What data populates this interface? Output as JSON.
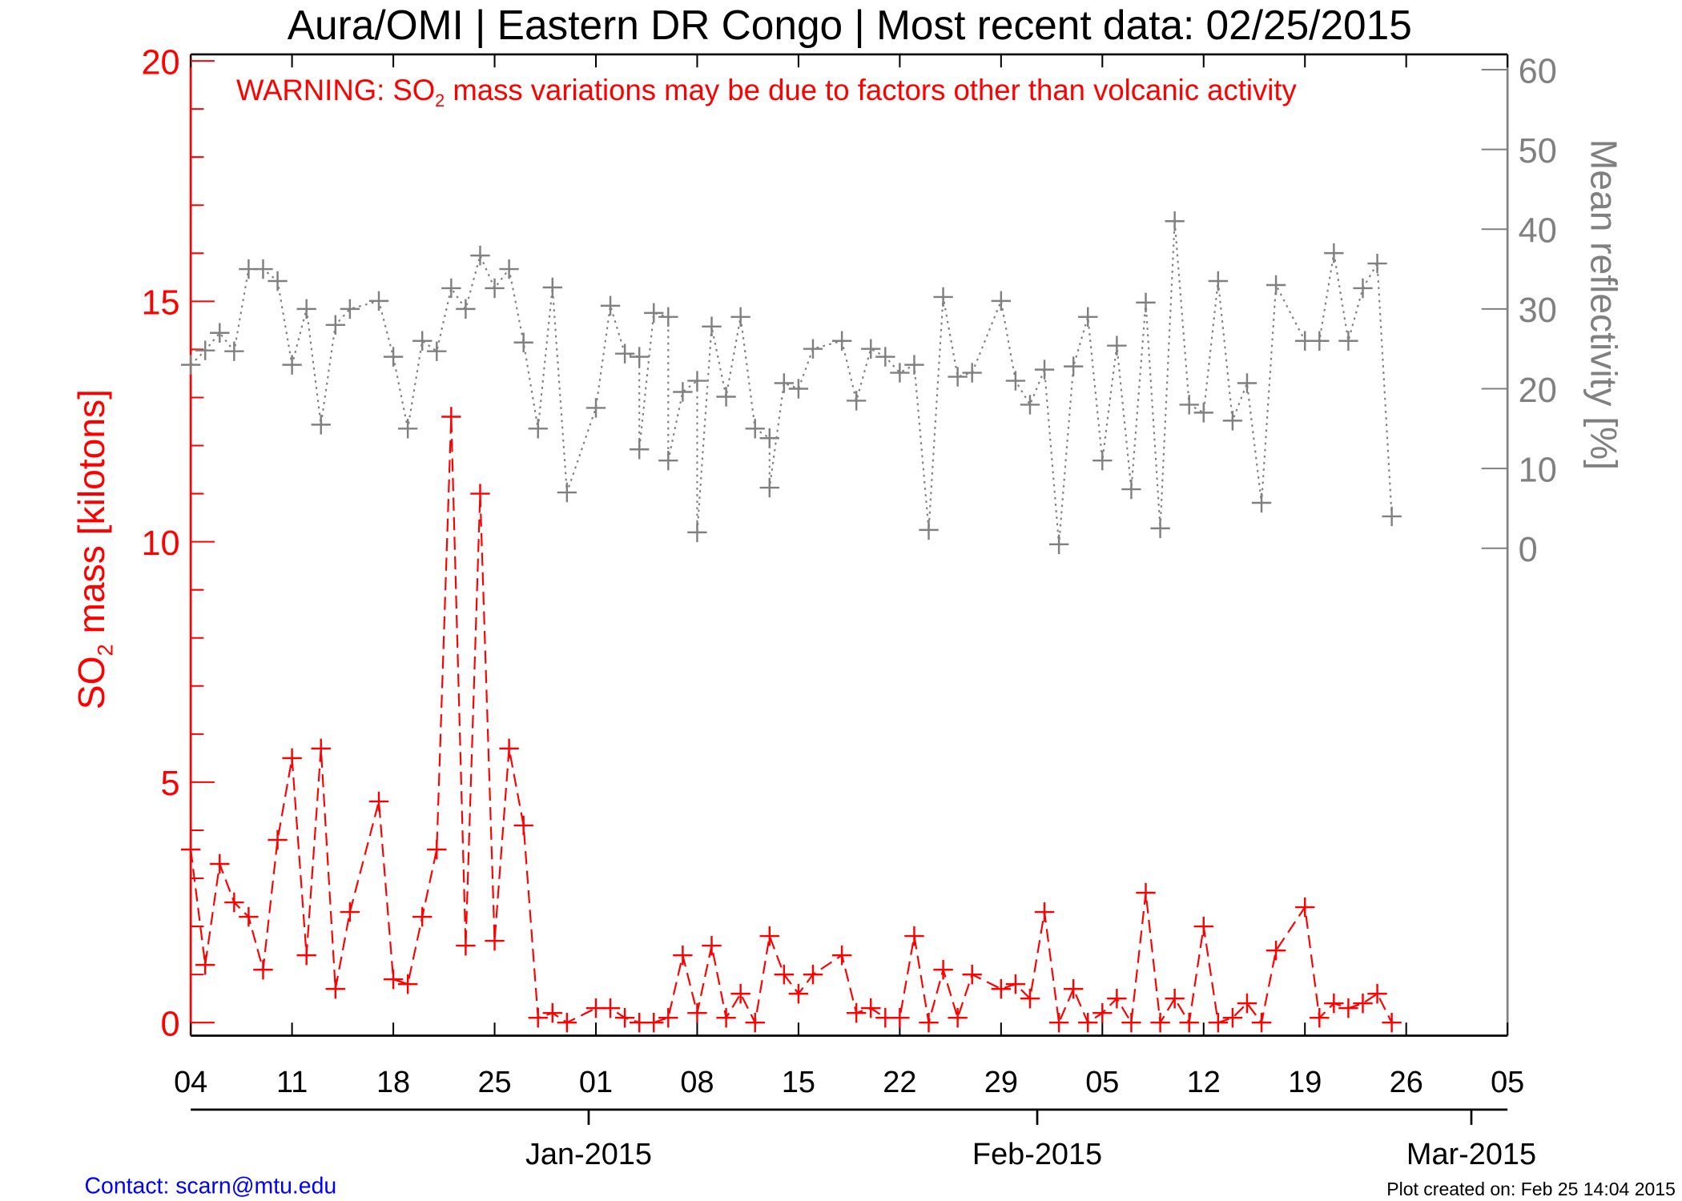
{
  "chart_data": {
    "type": "line",
    "title": "Aura/OMI | Eastern DR Congo | Most recent data: 02/25/2015",
    "warning": {
      "prefix": "WARNING: SO",
      "sub": "2",
      "suffix": " mass variations may be due to factors other than volcanic activity"
    },
    "x_origin_date": "2014-12-04",
    "x_unit": "days since 04 Dec 2014",
    "xlim": [
      0,
      91
    ],
    "x_ticks": [
      {
        "day": 0,
        "label": "04"
      },
      {
        "day": 7,
        "label": "11"
      },
      {
        "day": 14,
        "label": "18"
      },
      {
        "day": 21,
        "label": "25"
      },
      {
        "day": 28,
        "label": "01"
      },
      {
        "day": 35,
        "label": "08"
      },
      {
        "day": 42,
        "label": "15"
      },
      {
        "day": 49,
        "label": "22"
      },
      {
        "day": 56,
        "label": "29"
      },
      {
        "day": 63,
        "label": "05"
      },
      {
        "day": 70,
        "label": "12"
      },
      {
        "day": 77,
        "label": "19"
      },
      {
        "day": 84,
        "label": "26"
      },
      {
        "day": 91,
        "label": "05"
      }
    ],
    "month_ticks": [
      {
        "day": 27.5,
        "label": "Jan-2015"
      },
      {
        "day": 58.5,
        "label": "Feb-2015"
      },
      {
        "day": 88.5,
        "label": "Mar-2015"
      }
    ],
    "y_left": {
      "label_prefix": "SO",
      "label_sub": "2",
      "label_suffix": " mass [kilotons]",
      "ylim": [
        0,
        20
      ],
      "ticks": [
        "0",
        "5",
        "10",
        "15",
        "20"
      ],
      "color": "#ff0000"
    },
    "y_right": {
      "label": "Mean reflectivity [%]",
      "ylim": [
        0,
        60
      ],
      "ticks": [
        "0",
        "10",
        "20",
        "30",
        "40",
        "50",
        "60"
      ],
      "color": "#808080"
    },
    "series": [
      {
        "name": "SO2 mass",
        "axis": "left",
        "color": "#ff0000",
        "style": "dashed",
        "points": [
          [
            0,
            3.6
          ],
          [
            1,
            1.2
          ],
          [
            2,
            3.3
          ],
          [
            3,
            2.5
          ],
          [
            4,
            2.2
          ],
          [
            5,
            1.1
          ],
          [
            6,
            3.8
          ],
          [
            7,
            5.5
          ],
          [
            8,
            1.4
          ],
          [
            9,
            5.7
          ],
          [
            10,
            0.7
          ],
          [
            11,
            2.3
          ],
          [
            13,
            4.6
          ],
          [
            14,
            0.9
          ],
          [
            15,
            0.8
          ],
          [
            16,
            2.2
          ],
          [
            17,
            3.6
          ],
          [
            18,
            12.6
          ],
          [
            19,
            1.6
          ],
          [
            20,
            11.0
          ],
          [
            21,
            1.7
          ],
          [
            22,
            5.7
          ],
          [
            23,
            4.1
          ],
          [
            24,
            0.1
          ],
          [
            25,
            0.2
          ],
          [
            26,
            0.0
          ],
          [
            28,
            0.3
          ],
          [
            29,
            0.3
          ],
          [
            30,
            0.1
          ],
          [
            31,
            0.0
          ],
          [
            32,
            0.0
          ],
          [
            33,
            0.1
          ],
          [
            34,
            1.4
          ],
          [
            35,
            0.2
          ],
          [
            36,
            1.6
          ],
          [
            37,
            0.1
          ],
          [
            38,
            0.6
          ],
          [
            39,
            0.0
          ],
          [
            40,
            1.8
          ],
          [
            41,
            1.0
          ],
          [
            42,
            0.6
          ],
          [
            43,
            1.0
          ],
          [
            45,
            1.4
          ],
          [
            46,
            0.2
          ],
          [
            47,
            0.3
          ],
          [
            48,
            0.1
          ],
          [
            49,
            0.1
          ],
          [
            50,
            1.8
          ],
          [
            51,
            0.0
          ],
          [
            52,
            1.1
          ],
          [
            53,
            0.1
          ],
          [
            54,
            1.0
          ],
          [
            56,
            0.7
          ],
          [
            57,
            0.8
          ],
          [
            58,
            0.5
          ],
          [
            59,
            2.3
          ],
          [
            60,
            0.0
          ],
          [
            61,
            0.7
          ],
          [
            62,
            0.0
          ],
          [
            63,
            0.2
          ],
          [
            64,
            0.5
          ],
          [
            65,
            0.0
          ],
          [
            66,
            2.7
          ],
          [
            67,
            0.0
          ],
          [
            68,
            0.5
          ],
          [
            69,
            0.0
          ],
          [
            70,
            2.0
          ],
          [
            71,
            0.0
          ],
          [
            72,
            0.1
          ],
          [
            73,
            0.4
          ],
          [
            74,
            0.0
          ],
          [
            75,
            1.5
          ],
          [
            77,
            2.4
          ],
          [
            78,
            0.1
          ],
          [
            79,
            0.4
          ],
          [
            80,
            0.3
          ],
          [
            81,
            0.4
          ],
          [
            82,
            0.6
          ],
          [
            83,
            0.0
          ]
        ]
      },
      {
        "name": "Mean reflectivity",
        "axis": "right",
        "color": "#808080",
        "style": "dotted",
        "points": [
          [
            0,
            23
          ],
          [
            1,
            24.8
          ],
          [
            2,
            27
          ],
          [
            3,
            24.7
          ],
          [
            4,
            35
          ],
          [
            5,
            35
          ],
          [
            6,
            33.5
          ],
          [
            7,
            23
          ],
          [
            8,
            30
          ],
          [
            9,
            15.5
          ],
          [
            10,
            28
          ],
          [
            11,
            30
          ],
          [
            13,
            31
          ],
          [
            14,
            24
          ],
          [
            15,
            15
          ],
          [
            16,
            26
          ],
          [
            17,
            24.7
          ],
          [
            18,
            32.6
          ],
          [
            19,
            30
          ],
          [
            20,
            36.7
          ],
          [
            21,
            32.6
          ],
          [
            22,
            35
          ],
          [
            23,
            25.8
          ],
          [
            24,
            15
          ],
          [
            25,
            32.7
          ],
          [
            26,
            7
          ],
          [
            28,
            17.6
          ],
          [
            29,
            30.4
          ],
          [
            30,
            24.4
          ],
          [
            31,
            24
          ],
          [
            31,
            12.4
          ],
          [
            32,
            29.5
          ],
          [
            33,
            29
          ],
          [
            33,
            11
          ],
          [
            34,
            19.6
          ],
          [
            35,
            21
          ],
          [
            35,
            2
          ],
          [
            36,
            27.8
          ],
          [
            37,
            19
          ],
          [
            38,
            29
          ],
          [
            39,
            15
          ],
          [
            40,
            13.8
          ],
          [
            40,
            7.6
          ],
          [
            41,
            20.7
          ],
          [
            42,
            20
          ],
          [
            43,
            25
          ],
          [
            45,
            26
          ],
          [
            46,
            18.5
          ],
          [
            47,
            25
          ],
          [
            48,
            24
          ],
          [
            49,
            22
          ],
          [
            50,
            23
          ],
          [
            51,
            2.3
          ],
          [
            52,
            31.5
          ],
          [
            53,
            21.5
          ],
          [
            54,
            22
          ],
          [
            56,
            31
          ],
          [
            57,
            21
          ],
          [
            58,
            18
          ],
          [
            59,
            22.4
          ],
          [
            60,
            0.5
          ],
          [
            61,
            22.8
          ],
          [
            62,
            29
          ],
          [
            63,
            11
          ],
          [
            64,
            25.4
          ],
          [
            65,
            7.4
          ],
          [
            66,
            30.8
          ],
          [
            67,
            2.5
          ],
          [
            68,
            41
          ],
          [
            69,
            18
          ],
          [
            70,
            17
          ],
          [
            71,
            33.5
          ],
          [
            72,
            16
          ],
          [
            73,
            20.7
          ],
          [
            74,
            5.7
          ],
          [
            75,
            33
          ],
          [
            77,
            26
          ],
          [
            78,
            26
          ],
          [
            79,
            37
          ],
          [
            80,
            26
          ],
          [
            81,
            32.6
          ],
          [
            82,
            35.7
          ],
          [
            83,
            4
          ]
        ]
      }
    ],
    "footer": {
      "contact": "Contact: scarn@mtu.edu",
      "created": "Plot created on: Feb 25 14:04 2015"
    }
  }
}
